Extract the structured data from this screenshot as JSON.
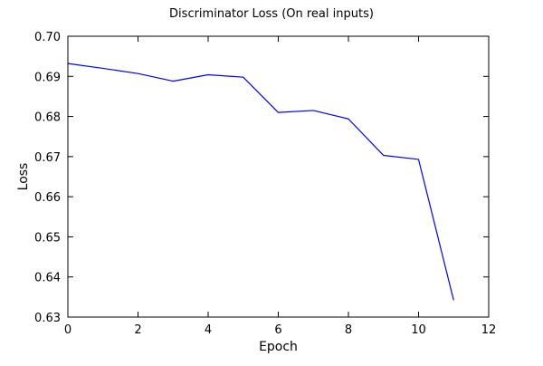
{
  "chart_data": {
    "type": "line",
    "title": "Discriminator Loss (On real inputs)",
    "xlabel": "Epoch",
    "ylabel": "Loss",
    "xlim": [
      0,
      12
    ],
    "ylim": [
      0.63,
      0.7
    ],
    "x_ticks": [
      "0",
      "2",
      "4",
      "6",
      "8",
      "10",
      "12"
    ],
    "y_ticks": [
      "0.63",
      "0.64",
      "0.65",
      "0.66",
      "0.67",
      "0.68",
      "0.69",
      "0.70"
    ],
    "grid": false,
    "series": [
      {
        "color": "#0000ff",
        "x": [
          0,
          1,
          2,
          3,
          4,
          5,
          6,
          7,
          8,
          9,
          10,
          11
        ],
        "y": [
          0.6932,
          0.692,
          0.6907,
          0.6888,
          0.6904,
          0.6898,
          0.681,
          0.6815,
          0.6794,
          0.6703,
          0.6693,
          0.6342
        ]
      }
    ]
  }
}
